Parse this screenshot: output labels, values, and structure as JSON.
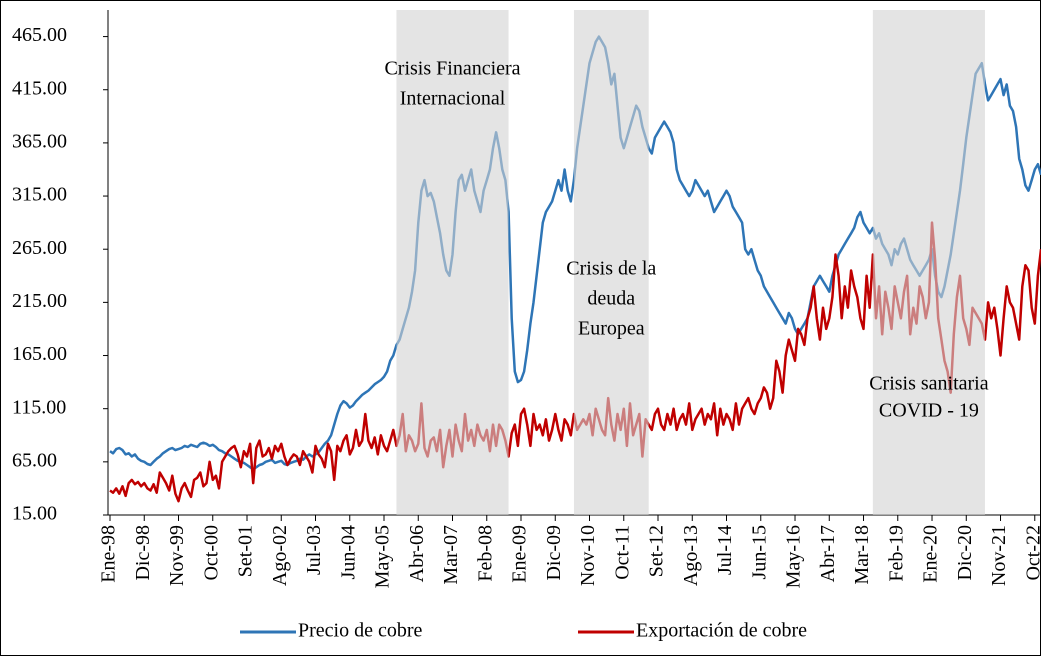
{
  "chart_data": {
    "type": "line",
    "categories": [
      "Ene-98",
      null,
      null,
      null,
      null,
      null,
      null,
      null,
      null,
      null,
      null,
      "Dic-98",
      null,
      null,
      null,
      null,
      null,
      null,
      null,
      null,
      null,
      null,
      "Nov-99",
      null,
      null,
      null,
      null,
      null,
      null,
      null,
      null,
      null,
      null,
      "Oct-00",
      null,
      null,
      null,
      null,
      null,
      null,
      null,
      null,
      null,
      null,
      "Set-01",
      null,
      null,
      null,
      null,
      null,
      null,
      null,
      null,
      null,
      null,
      "Ago-02",
      null,
      null,
      null,
      null,
      null,
      null,
      null,
      null,
      null,
      null,
      "Jul-03",
      null,
      null,
      null,
      null,
      null,
      null,
      null,
      null,
      null,
      null,
      "Jun-04",
      null,
      null,
      null,
      null,
      null,
      null,
      null,
      null,
      null,
      null,
      "May-05",
      null,
      null,
      null,
      null,
      null,
      null,
      null,
      null,
      null,
      null,
      "Abr-06",
      null,
      null,
      null,
      null,
      null,
      null,
      null,
      null,
      null,
      null,
      "Mar-07",
      null,
      null,
      null,
      null,
      null,
      null,
      null,
      null,
      null,
      null,
      "Feb-08",
      null,
      null,
      null,
      null,
      null,
      null,
      null,
      null,
      null,
      null,
      "Ene-09",
      null,
      null,
      null,
      null,
      null,
      null,
      null,
      null,
      null,
      null,
      "Dic-09",
      null,
      null,
      null,
      null,
      null,
      null,
      null,
      null,
      null,
      null,
      "Nov-10",
      null,
      null,
      null,
      null,
      null,
      null,
      null,
      null,
      null,
      null,
      "Oct-11",
      null,
      null,
      null,
      null,
      null,
      null,
      null,
      null,
      null,
      null,
      "Set-12",
      null,
      null,
      null,
      null,
      null,
      null,
      null,
      null,
      null,
      null,
      "Ago-13",
      null,
      null,
      null,
      null,
      null,
      null,
      null,
      null,
      null,
      null,
      "Jul-14",
      null,
      null,
      null,
      null,
      null,
      null,
      null,
      null,
      null,
      null,
      "Jun-15",
      null,
      null,
      null,
      null,
      null,
      null,
      null,
      null,
      null,
      null,
      "May-16",
      null,
      null,
      null,
      null,
      null,
      null,
      null,
      null,
      null,
      null,
      "Abr-17",
      null,
      null,
      null,
      null,
      null,
      null,
      null,
      null,
      null,
      null,
      "Mar-18",
      null,
      null,
      null,
      null,
      null,
      null,
      null,
      null,
      null,
      null,
      "Feb-19",
      null,
      null,
      null,
      null,
      null,
      null,
      null,
      null,
      null,
      null,
      "Ene-20",
      null,
      null,
      null,
      null,
      null,
      null,
      null,
      null,
      null,
      null,
      "Dic-20",
      null,
      null,
      null,
      null,
      null,
      null,
      null,
      null,
      null,
      null,
      "Nov-21",
      null,
      null,
      null,
      null,
      null,
      null,
      null,
      null,
      null,
      null,
      "Oct-22",
      null,
      null
    ],
    "series": [
      {
        "name": "Precio de cobre",
        "color": "#2e75b6",
        "values": [
          75,
          73,
          77,
          78,
          76,
          72,
          73,
          70,
          72,
          68,
          66,
          65,
          63,
          62,
          65,
          68,
          70,
          73,
          75,
          77,
          78,
          76,
          77,
          78,
          80,
          79,
          81,
          80,
          79,
          82,
          83,
          82,
          80,
          81,
          79,
          76,
          75,
          73,
          72,
          70,
          68,
          66,
          65,
          64,
          62,
          60,
          58,
          60,
          62,
          63,
          65,
          66,
          67,
          64,
          65,
          66,
          63,
          62,
          64,
          65,
          66,
          68,
          67,
          70,
          72,
          70,
          72,
          74,
          78,
          82,
          85,
          90,
          100,
          110,
          118,
          122,
          120,
          116,
          118,
          122,
          125,
          128,
          130,
          132,
          135,
          138,
          140,
          142,
          145,
          150,
          160,
          165,
          175,
          180,
          190,
          200,
          210,
          225,
          245,
          290,
          320,
          330,
          315,
          318,
          310,
          295,
          280,
          260,
          245,
          240,
          260,
          300,
          330,
          335,
          320,
          330,
          340,
          320,
          310,
          300,
          320,
          330,
          340,
          360,
          375,
          360,
          340,
          330,
          300,
          200,
          150,
          140,
          142,
          150,
          170,
          195,
          215,
          240,
          265,
          290,
          300,
          305,
          310,
          320,
          330,
          320,
          340,
          320,
          310,
          330,
          360,
          380,
          400,
          420,
          440,
          450,
          460,
          465,
          460,
          455,
          440,
          420,
          430,
          400,
          370,
          360,
          370,
          380,
          390,
          400,
          395,
          380,
          370,
          360,
          355,
          370,
          375,
          380,
          385,
          380,
          375,
          365,
          340,
          330,
          325,
          320,
          315,
          320,
          330,
          325,
          320,
          315,
          320,
          310,
          300,
          305,
          310,
          315,
          320,
          315,
          305,
          300,
          295,
          290,
          265,
          260,
          265,
          255,
          245,
          240,
          230,
          225,
          220,
          215,
          210,
          205,
          200,
          195,
          205,
          200,
          190,
          185,
          190,
          195,
          200,
          215,
          230,
          235,
          240,
          235,
          230,
          225,
          240,
          250,
          260,
          265,
          270,
          275,
          280,
          285,
          295,
          300,
          290,
          285,
          280,
          285,
          275,
          280,
          270,
          265,
          260,
          250,
          265,
          260,
          270,
          275,
          265,
          255,
          250,
          245,
          240,
          245,
          250,
          255,
          265,
          240,
          225,
          220,
          230,
          245,
          260,
          280,
          300,
          320,
          345,
          370,
          390,
          410,
          430,
          435,
          440,
          420,
          405,
          410,
          415,
          420,
          425,
          410,
          420,
          400,
          395,
          380,
          350,
          340,
          325,
          320,
          330,
          340,
          345,
          335
        ]
      },
      {
        "name": "Exportación de cobre",
        "color": "#c00000",
        "values": [
          38,
          36,
          40,
          35,
          42,
          33,
          45,
          48,
          44,
          46,
          42,
          45,
          40,
          38,
          44,
          36,
          55,
          50,
          45,
          38,
          52,
          35,
          28,
          40,
          45,
          38,
          32,
          48,
          50,
          55,
          42,
          45,
          65,
          48,
          52,
          40,
          65,
          70,
          75,
          78,
          80,
          72,
          60,
          75,
          70,
          82,
          45,
          78,
          85,
          70,
          72,
          78,
          68,
          80,
          75,
          82,
          70,
          62,
          68,
          72,
          70,
          62,
          75,
          70,
          65,
          55,
          80,
          72,
          68,
          60,
          82,
          75,
          48,
          80,
          75,
          85,
          90,
          72,
          78,
          95,
          80,
          85,
          110,
          85,
          78,
          88,
          72,
          90,
          80,
          75,
          85,
          95,
          80,
          90,
          110,
          75,
          90,
          85,
          75,
          82,
          120,
          78,
          70,
          85,
          88,
          75,
          95,
          60,
          80,
          95,
          70,
          100,
          85,
          75,
          110,
          85,
          95,
          80,
          100,
          90,
          85,
          95,
          75,
          100,
          80,
          100,
          95,
          85,
          70,
          92,
          100,
          80,
          110,
          115,
          100,
          80,
          110,
          95,
          100,
          90,
          105,
          85,
          95,
          110,
          95,
          85,
          105,
          100,
          90,
          110,
          95,
          100,
          105,
          100,
          110,
          90,
          115,
          105,
          95,
          90,
          125,
          100,
          85,
          110,
          95,
          115,
          80,
          120,
          90,
          100,
          110,
          70,
          105,
          100,
          95,
          110,
          115,
          100,
          95,
          110,
          100,
          115,
          95,
          105,
          110,
          100,
          120,
          95,
          105,
          110,
          115,
          100,
          110,
          105,
          120,
          90,
          115,
          100,
          110,
          105,
          95,
          120,
          100,
          115,
          120,
          125,
          115,
          110,
          120,
          125,
          135,
          130,
          115,
          125,
          160,
          150,
          130,
          165,
          180,
          170,
          160,
          190,
          185,
          175,
          200,
          210,
          230,
          200,
          180,
          210,
          190,
          200,
          220,
          260,
          240,
          200,
          230,
          210,
          245,
          230,
          220,
          200,
          190,
          240,
          210,
          260,
          200,
          230,
          185,
          225,
          210,
          190,
          230,
          215,
          200,
          225,
          240,
          185,
          210,
          195,
          230,
          220,
          200,
          215,
          290,
          255,
          200,
          180,
          160,
          150,
          130,
          185,
          220,
          240,
          200,
          190,
          175,
          210,
          205,
          200,
          195,
          180,
          215,
          200,
          210,
          190,
          165,
          200,
          230,
          215,
          210,
          195,
          180,
          230,
          250,
          245,
          210,
          195,
          240,
          265
        ]
      }
    ],
    "ylim": [
      15,
      490
    ],
    "yticks": [
      {
        "value": 15,
        "label": "15.00"
      },
      {
        "value": 65,
        "label": "65.00"
      },
      {
        "value": 115,
        "label": "115.00"
      },
      {
        "value": 165,
        "label": "165.00"
      },
      {
        "value": 215,
        "label": "215.00"
      },
      {
        "value": 265,
        "label": "265.00"
      },
      {
        "value": 315,
        "label": "315.00"
      },
      {
        "value": 365,
        "label": "365.00"
      },
      {
        "value": 415,
        "label": "415.00"
      },
      {
        "value": 465,
        "label": "465.00"
      }
    ],
    "shaded_regions": [
      {
        "start": 92,
        "end": 128,
        "lines": [
          "Crisis Financiera",
          "Internacional"
        ]
      },
      {
        "start": 149,
        "end": 173,
        "lines": [
          "Crisis de la",
          "deuda",
          "Europea"
        ]
      },
      {
        "start": 245,
        "end": 281,
        "lines": [
          "Crisis sanitaria",
          "COVID - 19"
        ]
      }
    ],
    "legend": "bottom"
  }
}
